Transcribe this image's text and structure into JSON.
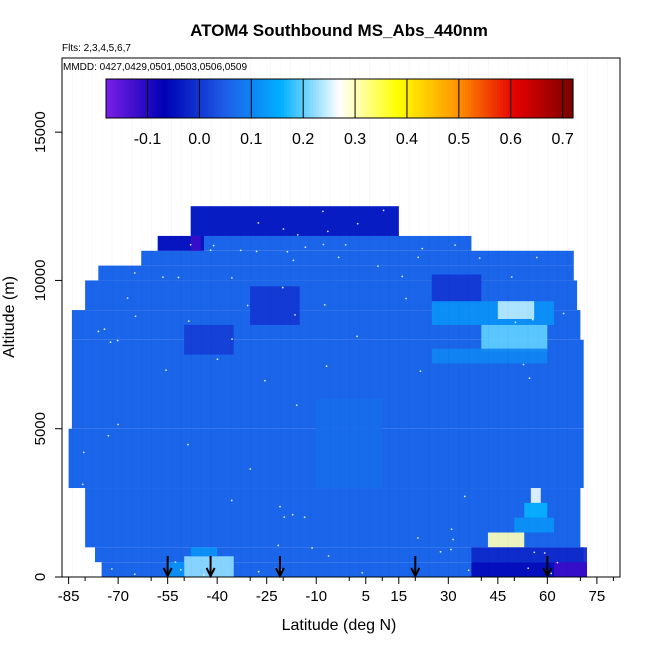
{
  "chart_data": {
    "type": "heatmap",
    "title": "ATOM4 Southbound MS_Abs_440nm",
    "annotations": {
      "flights": "Flts: 2,3,4,5,6,7",
      "dates": "MMDD: 0427,0429,0501,0503,0506,0509"
    },
    "xlabel": "Latitude (deg N)",
    "ylabel": "Altitude (m)",
    "xlim": [
      -87,
      82
    ],
    "ylim": [
      0,
      17500
    ],
    "x_ticks": [
      -85,
      -70,
      -55,
      -40,
      -25,
      -10,
      5,
      15,
      30,
      45,
      60,
      75
    ],
    "y_ticks": [
      0,
      5000,
      10000,
      15000
    ],
    "colorbar": {
      "min": -0.18,
      "max": 0.72,
      "ticks": [
        -0.1,
        0.0,
        0.1,
        0.2,
        0.3,
        0.4,
        0.5,
        0.6,
        0.7
      ],
      "tick_labels": [
        "-0.1",
        "0.0",
        "0.1",
        "0.2",
        "0.3",
        "0.4",
        "0.5",
        "0.6",
        "0.7"
      ],
      "colors": [
        "#7a1ee6",
        "#0000b4",
        "#1e5ae6",
        "#00b0ff",
        "#ffffff",
        "#ffff00",
        "#ff9600",
        "#e60000",
        "#7a0000"
      ]
    },
    "background_value": 0.06,
    "coverage": [
      {
        "y0": 0,
        "y1": 500,
        "x0": -75,
        "x1": 72
      },
      {
        "y0": 500,
        "y1": 1000,
        "x0": -77,
        "x1": 71
      },
      {
        "y0": 1000,
        "y1": 3000,
        "x0": -80,
        "x1": 70
      },
      {
        "y0": 3000,
        "y1": 5000,
        "x0": -85,
        "x1": 71
      },
      {
        "y0": 5000,
        "y1": 8000,
        "x0": -84,
        "x1": 71
      },
      {
        "y0": 8000,
        "y1": 9000,
        "x0": -84,
        "x1": 70
      },
      {
        "y0": 9000,
        "y1": 10000,
        "x0": -80,
        "x1": 69
      },
      {
        "y0": 10000,
        "y1": 10500,
        "x0": -76,
        "x1": 68
      },
      {
        "y0": 10500,
        "y1": 11000,
        "x0": -63,
        "x1": 68
      },
      {
        "y0": 11000,
        "y1": 11500,
        "x0": -58,
        "x1": 37
      },
      {
        "y0": 11500,
        "y1": 12500,
        "x0": -48,
        "x1": 15
      }
    ],
    "features": [
      {
        "x0": -48,
        "x1": 15,
        "y0": 11500,
        "y1": 12500,
        "value": -0.04
      },
      {
        "x0": -58,
        "x1": -44,
        "y0": 11000,
        "y1": 11500,
        "value": -0.05
      },
      {
        "x0": -48,
        "x1": -45,
        "y0": 11000,
        "y1": 11500,
        "value": -0.12
      },
      {
        "x0": -50,
        "x1": -35,
        "y0": 7500,
        "y1": 8500,
        "value": 0.01
      },
      {
        "x0": -30,
        "x1": -15,
        "y0": 8500,
        "y1": 9800,
        "value": 0.0
      },
      {
        "x0": 25,
        "x1": 40,
        "y0": 9200,
        "y1": 10200,
        "value": 0.0
      },
      {
        "x0": 25,
        "x1": 62,
        "y0": 8500,
        "y1": 9300,
        "value": 0.12
      },
      {
        "x0": 40,
        "x1": 60,
        "y0": 7600,
        "y1": 8500,
        "value": 0.2
      },
      {
        "x0": 45,
        "x1": 56,
        "y0": 8700,
        "y1": 9300,
        "value": 0.24
      },
      {
        "x0": 25,
        "x1": 60,
        "y0": 7200,
        "y1": 7700,
        "value": 0.1
      },
      {
        "x0": 53,
        "x1": 60,
        "y0": 2000,
        "y1": 2500,
        "value": 0.16
      },
      {
        "x0": 55,
        "x1": 58,
        "y0": 2500,
        "y1": 3000,
        "value": 0.26
      },
      {
        "x0": 50,
        "x1": 62,
        "y0": 1500,
        "y1": 2000,
        "value": 0.12
      },
      {
        "x0": 42,
        "x1": 53,
        "y0": 1000,
        "y1": 1500,
        "value": 0.3
      },
      {
        "x0": 37,
        "x1": 72,
        "y0": 500,
        "y1": 1000,
        "value": -0.02
      },
      {
        "x0": 37,
        "x1": 72,
        "y0": 0,
        "y1": 500,
        "value": -0.06
      },
      {
        "x0": 62,
        "x1": 72,
        "y0": 0,
        "y1": 500,
        "value": -0.12
      },
      {
        "x0": -50,
        "x1": -35,
        "y0": 0,
        "y1": 700,
        "value": 0.22
      },
      {
        "x0": -48,
        "x1": -40,
        "y0": 700,
        "y1": 1000,
        "value": 0.12
      },
      {
        "x0": -55,
        "x1": -50,
        "y0": 0,
        "y1": 500,
        "value": 0.12
      },
      {
        "x0": -10,
        "x1": 10,
        "y0": 3000,
        "y1": 6000,
        "value": 0.07
      }
    ],
    "flight_markers": [
      -55,
      -42,
      -21,
      20,
      60
    ]
  }
}
